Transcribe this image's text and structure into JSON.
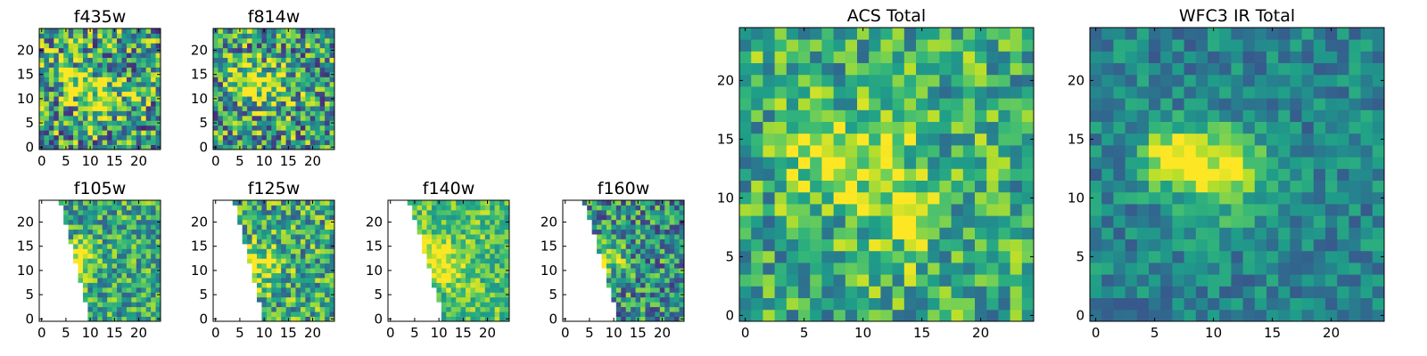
{
  "chart_data": [
    {
      "id": "f435w",
      "type": "heatmap",
      "title": "f435w",
      "colormap": "viridis",
      "grid_size": [
        25,
        25
      ],
      "mask": "none",
      "xticks": [
        "0",
        "5",
        "10",
        "15",
        "20"
      ],
      "yticks": [
        "0",
        "5",
        "10",
        "15",
        "20"
      ],
      "xlim": [
        0,
        25
      ],
      "ylim": [
        0,
        25
      ],
      "seed": 11,
      "noise": 0.9,
      "base": 0.55,
      "blobs": [
        {
          "cx": 7,
          "cy": 14,
          "r": 2.5,
          "amp": 0.4
        },
        {
          "cx": 14,
          "cy": 12,
          "r": 3,
          "amp": 0.3
        },
        {
          "cx": 11,
          "cy": 8,
          "r": 2,
          "amp": 0.3
        }
      ]
    },
    {
      "id": "f814w",
      "type": "heatmap",
      "title": "f814w",
      "colormap": "viridis",
      "grid_size": [
        25,
        25
      ],
      "mask": "none",
      "xticks": [
        "0",
        "5",
        "10",
        "15",
        "20"
      ],
      "yticks": [
        "0",
        "5",
        "10",
        "15",
        "20"
      ],
      "xlim": [
        0,
        25
      ],
      "ylim": [
        0,
        25
      ],
      "seed": 23,
      "noise": 0.85,
      "base": 0.55,
      "blobs": [
        {
          "cx": 7,
          "cy": 14,
          "r": 2.5,
          "amp": 0.45
        },
        {
          "cx": 12,
          "cy": 13,
          "r": 3,
          "amp": 0.3
        }
      ]
    },
    {
      "id": "f105w",
      "type": "heatmap",
      "title": "f105w",
      "colormap": "viridis",
      "grid_size": [
        25,
        25
      ],
      "mask": "wedge-left",
      "mask_edge": {
        "x_at_top": 4,
        "x_at_bottom": 10
      },
      "xticks": [
        "0",
        "5",
        "10",
        "15",
        "20"
      ],
      "yticks": [
        "0",
        "5",
        "10",
        "15",
        "20"
      ],
      "xlim": [
        0,
        25
      ],
      "ylim": [
        0,
        25
      ],
      "seed": 37,
      "noise": 0.6,
      "base": 0.6,
      "blobs": [
        {
          "cx": 8,
          "cy": 13,
          "r": 2.5,
          "amp": 0.4
        }
      ]
    },
    {
      "id": "f125w",
      "type": "heatmap",
      "title": "f125w",
      "colormap": "viridis",
      "grid_size": [
        25,
        25
      ],
      "mask": "wedge-left",
      "mask_edge": {
        "x_at_top": 4,
        "x_at_bottom": 10
      },
      "xticks": [
        "0",
        "5",
        "10",
        "15",
        "20"
      ],
      "yticks": [
        "0",
        "5",
        "10",
        "15",
        "20"
      ],
      "xlim": [
        0,
        25
      ],
      "ylim": [
        0,
        25
      ],
      "seed": 41,
      "noise": 0.7,
      "base": 0.6,
      "blobs": [
        {
          "cx": 10,
          "cy": 12,
          "r": 3,
          "amp": 0.35
        }
      ]
    },
    {
      "id": "f140w",
      "type": "heatmap",
      "title": "f140w",
      "colormap": "viridis",
      "grid_size": [
        25,
        25
      ],
      "mask": "wedge-left",
      "mask_edge": {
        "x_at_top": 4,
        "x_at_bottom": 11
      },
      "xticks": [
        "0",
        "5",
        "10",
        "15",
        "20"
      ],
      "yticks": [
        "0",
        "5",
        "10",
        "15",
        "20"
      ],
      "xlim": [
        0,
        25
      ],
      "ylim": [
        0,
        25
      ],
      "seed": 53,
      "noise": 0.45,
      "base": 0.72,
      "blobs": [
        {
          "cx": 9,
          "cy": 13,
          "r": 3,
          "amp": 0.3
        },
        {
          "cx": 13,
          "cy": 10,
          "r": 2,
          "amp": 0.2
        }
      ]
    },
    {
      "id": "f160w",
      "type": "heatmap",
      "title": "f160w",
      "colormap": "viridis",
      "grid_size": [
        25,
        25
      ],
      "mask": "wedge-left",
      "mask_edge": {
        "x_at_top": 4,
        "x_at_bottom": 11
      },
      "xticks": [
        "0",
        "5",
        "10",
        "15",
        "20"
      ],
      "yticks": [
        "0",
        "5",
        "10",
        "15",
        "20"
      ],
      "xlim": [
        0,
        25
      ],
      "ylim": [
        0,
        25
      ],
      "seed": 67,
      "noise": 0.7,
      "base": 0.5,
      "blobs": [
        {
          "cx": 9,
          "cy": 13,
          "r": 2.5,
          "amp": 0.45
        }
      ]
    },
    {
      "id": "acs-total",
      "type": "heatmap",
      "title": "ACS Total",
      "colormap": "viridis",
      "grid_size": [
        25,
        25
      ],
      "mask": "none",
      "xticks": [
        "0",
        "5",
        "10",
        "15",
        "20"
      ],
      "yticks": [
        "0",
        "5",
        "10",
        "15",
        "20"
      ],
      "xlim": [
        0,
        25
      ],
      "ylim": [
        0,
        25
      ],
      "seed": 79,
      "noise": 0.6,
      "base": 0.62,
      "blobs": [
        {
          "cx": 7,
          "cy": 14,
          "r": 2.2,
          "amp": 0.35
        },
        {
          "cx": 12,
          "cy": 13,
          "r": 3,
          "amp": 0.25
        },
        {
          "cx": 14,
          "cy": 8,
          "r": 2,
          "amp": 0.25
        }
      ]
    },
    {
      "id": "wfc3-ir-total",
      "type": "heatmap",
      "title": "WFC3 IR Total",
      "colormap": "viridis",
      "grid_size": [
        25,
        25
      ],
      "mask": "none",
      "xticks": [
        "0",
        "5",
        "10",
        "15",
        "20"
      ],
      "yticks": [
        "0",
        "5",
        "10",
        "15",
        "20"
      ],
      "xlim": [
        0,
        25
      ],
      "ylim": [
        0,
        25
      ],
      "seed": 97,
      "noise": 0.35,
      "base": 0.45,
      "blobs": [
        {
          "cx": 7,
          "cy": 14,
          "r": 1.8,
          "amp": 0.5
        },
        {
          "cx": 12,
          "cy": 13,
          "r": 2.2,
          "amp": 0.4
        },
        {
          "cx": 10,
          "cy": 12,
          "r": 3,
          "amp": 0.15
        }
      ]
    }
  ]
}
